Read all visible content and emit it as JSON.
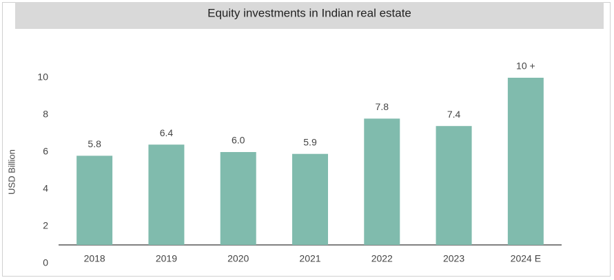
{
  "chart_data": {
    "type": "bar",
    "title": "Equity investments in Indian real estate",
    "y_label": "USD Billion",
    "categories": [
      "2018",
      "2019",
      "2020",
      "2021",
      "2022",
      "2023",
      "2024 E"
    ],
    "values": [
      5.8,
      6.4,
      6.0,
      5.9,
      7.8,
      7.4,
      10
    ],
    "value_labels": [
      "5.8",
      "6.4",
      "6.0",
      "5.9",
      "7.8",
      "7.4",
      "10 +"
    ],
    "color": "#80bbad",
    "ylim": [
      0,
      11
    ],
    "yticks": [
      0,
      2,
      4,
      6,
      8,
      10
    ],
    "grid": false
  }
}
